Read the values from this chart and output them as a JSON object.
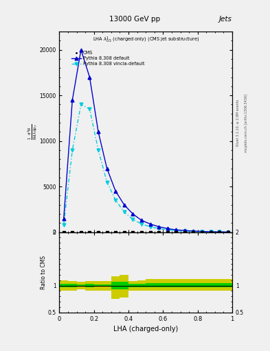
{
  "title_top": "13000 GeV pp",
  "title_right": "Jets",
  "annotation": "LHA $\\lambda^{1}_{0.5}$ (charged only) (CMS jet substructure)",
  "rivet_text": "Rivet 3.1.10, ≥ 2.8M events",
  "arxiv_text": "mcplots.cern.ch [arXiv:1306.3436]",
  "xlabel": "LHA (charged-only)",
  "ylabel_ratio": "Ratio to CMS",
  "cms_x": [
    0.025,
    0.075,
    0.125,
    0.175,
    0.225,
    0.275,
    0.325,
    0.375,
    0.425,
    0.475,
    0.525,
    0.575,
    0.625,
    0.675,
    0.725,
    0.775,
    0.825,
    0.875,
    0.925,
    0.975
  ],
  "cms_y": [
    5,
    5,
    5,
    5,
    5,
    5,
    5,
    5,
    5,
    5,
    5,
    5,
    5,
    5,
    5,
    5,
    5,
    5,
    5,
    5
  ],
  "pythia_default_x": [
    0.025,
    0.075,
    0.125,
    0.175,
    0.225,
    0.275,
    0.325,
    0.375,
    0.425,
    0.475,
    0.525,
    0.575,
    0.625,
    0.675,
    0.725,
    0.775,
    0.825,
    0.875,
    0.925,
    0.975
  ],
  "pythia_default_y": [
    1500,
    14500,
    20000,
    17000,
    11000,
    7000,
    4500,
    3000,
    2000,
    1300,
    900,
    600,
    400,
    250,
    180,
    120,
    80,
    50,
    30,
    15
  ],
  "pythia_vincia_x": [
    0.025,
    0.075,
    0.125,
    0.175,
    0.225,
    0.275,
    0.325,
    0.375,
    0.425,
    0.475,
    0.525,
    0.575,
    0.625,
    0.675,
    0.725,
    0.775,
    0.825,
    0.875,
    0.925,
    0.975
  ],
  "pythia_vincia_y": [
    800,
    9000,
    14000,
    13500,
    9000,
    5500,
    3500,
    2200,
    1400,
    900,
    600,
    400,
    250,
    160,
    110,
    70,
    45,
    30,
    18,
    10
  ],
  "ratio_bin_edges": [
    0.0,
    0.05,
    0.1,
    0.15,
    0.2,
    0.25,
    0.3,
    0.35,
    0.4,
    0.45,
    0.5,
    0.55,
    0.6,
    0.65,
    0.7,
    0.75,
    0.8,
    0.85,
    0.9,
    0.95,
    1.0
  ],
  "ratio_green_lo": [
    0.97,
    0.97,
    0.98,
    0.97,
    0.98,
    0.98,
    0.93,
    0.93,
    0.97,
    0.97,
    0.97,
    0.97,
    0.97,
    0.97,
    0.97,
    0.97,
    0.97,
    0.97,
    0.97,
    0.97
  ],
  "ratio_green_hi": [
    1.03,
    1.03,
    1.02,
    1.03,
    1.02,
    1.02,
    1.07,
    1.07,
    1.03,
    1.03,
    1.05,
    1.05,
    1.05,
    1.05,
    1.05,
    1.05,
    1.05,
    1.05,
    1.05,
    1.05
  ],
  "ratio_yellow_lo": [
    0.9,
    0.91,
    0.93,
    0.91,
    0.91,
    0.91,
    0.75,
    0.78,
    0.91,
    0.91,
    0.91,
    0.91,
    0.91,
    0.91,
    0.91,
    0.91,
    0.91,
    0.91,
    0.91,
    0.91
  ],
  "ratio_yellow_hi": [
    1.1,
    1.09,
    1.07,
    1.09,
    1.09,
    1.09,
    1.18,
    1.2,
    1.09,
    1.1,
    1.12,
    1.12,
    1.12,
    1.12,
    1.12,
    1.12,
    1.12,
    1.12,
    1.12,
    1.12
  ],
  "xlim": [
    0.0,
    1.0
  ],
  "ylim_main": [
    0,
    22000
  ],
  "ylim_ratio": [
    0.5,
    2.0
  ],
  "yticks_main": [
    0,
    5000,
    10000,
    15000,
    20000
  ],
  "ytick_labels_main": [
    "0",
    "5000",
    "10000",
    "15000",
    "20000"
  ],
  "yticks_ratio": [
    0.5,
    1.0,
    2.0
  ],
  "ytick_labels_ratio": [
    "0.5",
    "1",
    "2"
  ],
  "color_default": "#0000CC",
  "color_vincia": "#00CCDD",
  "color_cms": "#000000",
  "color_green": "#00CC00",
  "color_yellow": "#CCCC00",
  "background_color": "#f0f0f0"
}
